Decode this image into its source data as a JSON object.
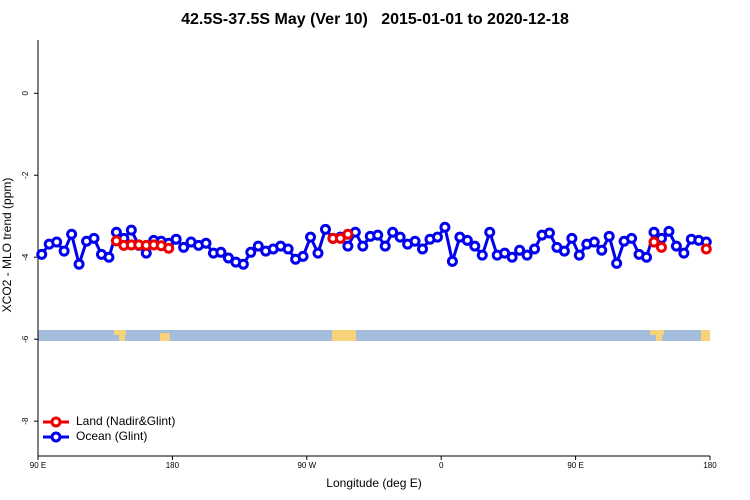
{
  "chart_data": {
    "type": "line",
    "title": "42.5S-37.5S May (Ver 10)   2015-01-01 to 2020-12-18",
    "x_label": "Longitude (deg E)",
    "y_label": "XCO2 - MLO trend (ppm)",
    "xlim": [
      90,
      540
    ],
    "ylim": [
      -8.85,
      1.3
    ],
    "xticks": [
      {
        "value": 90,
        "label": "90 E"
      },
      180,
      {
        "value": 270,
        "label": "90 W"
      },
      {
        "value": 360,
        "label": "0"
      },
      {
        "value": 450,
        "label": "90 E"
      },
      {
        "value": 540,
        "label": "180"
      }
    ],
    "yticks": [
      0,
      -2,
      -4,
      -6,
      -8
    ],
    "legend": "bottom-left",
    "x": [
      92.5,
      97.5,
      102.5,
      107.5,
      112.5,
      117.5,
      122.5,
      127.5,
      132.5,
      137.5,
      142.5,
      147.5,
      152.5,
      157.5,
      162.5,
      167.5,
      172.5,
      177.5,
      182.5,
      187.5,
      192.5,
      197.5,
      202.5,
      207.5,
      212.5,
      217.5,
      222.5,
      227.5,
      232.5,
      237.5,
      242.5,
      247.5,
      252.5,
      257.5,
      262.5,
      267.5,
      272.5,
      277.5,
      282.5,
      287.5,
      292.5,
      297.5,
      302.5,
      307.5,
      312.5,
      317.5,
      322.5,
      327.5,
      332.5,
      337.5,
      342.5,
      347.5,
      352.5,
      357.5,
      362.5,
      367.5,
      372.5,
      377.5,
      382.5,
      387.5,
      392.5,
      397.5,
      402.5,
      407.5,
      412.5,
      417.5,
      422.5,
      427.5,
      432.5,
      437.5,
      442.5,
      447.5,
      452.5,
      457.5,
      462.5,
      467.5,
      472.5,
      477.5,
      482.5,
      487.5,
      492.5,
      497.5,
      502.5,
      507.5,
      512.5,
      517.5,
      522.5,
      527.5,
      532.5,
      537.5
    ],
    "series": [
      {
        "name": "Ocean (Glint)",
        "color": "#0000ee",
        "values": [
          -3.93,
          -3.68,
          -3.63,
          -3.85,
          -3.44,
          -4.17,
          -3.61,
          -3.54,
          -3.93,
          -4.0,
          -3.39,
          -3.54,
          -3.34,
          -3.71,
          -3.9,
          -3.59,
          -3.61,
          -3.66,
          -3.56,
          -3.76,
          -3.63,
          -3.71,
          -3.66,
          -3.9,
          -3.88,
          -4.02,
          -4.12,
          -4.17,
          -3.88,
          -3.73,
          -3.85,
          -3.8,
          -3.73,
          -3.8,
          -4.05,
          -3.98,
          -3.51,
          -3.9,
          -3.32,
          -3.54,
          -3.51,
          -3.73,
          -3.39,
          -3.73,
          -3.49,
          -3.46,
          -3.73,
          -3.39,
          -3.51,
          -3.68,
          -3.61,
          -3.8,
          -3.56,
          -3.51,
          -3.27,
          -4.1,
          -3.51,
          -3.59,
          -3.73,
          -3.95,
          -3.39,
          -3.95,
          -3.9,
          -4.0,
          -3.83,
          -3.95,
          -3.8,
          -3.46,
          -3.41,
          -3.76,
          -3.85,
          -3.54,
          -3.95,
          -3.68,
          -3.63,
          -3.83,
          -3.49,
          -4.15,
          -3.61,
          -3.54,
          -3.93,
          -4.0,
          -3.39,
          -3.54,
          -3.37,
          -3.73,
          -3.9,
          -3.56,
          -3.59,
          -3.63
        ]
      },
      {
        "name": "Land (Nadir&Glint)",
        "color": "#ee0000",
        "values": [
          null,
          null,
          null,
          null,
          null,
          null,
          null,
          null,
          null,
          null,
          -3.6,
          -3.71,
          -3.7,
          -3.7,
          -3.71,
          -3.7,
          -3.72,
          -3.78,
          null,
          null,
          null,
          null,
          null,
          null,
          null,
          null,
          null,
          null,
          null,
          null,
          null,
          null,
          null,
          null,
          null,
          null,
          null,
          null,
          null,
          -3.54,
          -3.54,
          -3.44,
          null,
          null,
          null,
          null,
          null,
          null,
          null,
          null,
          null,
          null,
          null,
          null,
          null,
          null,
          null,
          null,
          null,
          null,
          null,
          null,
          null,
          null,
          null,
          null,
          null,
          null,
          null,
          null,
          null,
          null,
          null,
          null,
          null,
          null,
          null,
          null,
          null,
          null,
          null,
          null,
          -3.63,
          -3.76,
          null,
          null,
          null,
          null,
          null,
          -3.8
        ]
      }
    ]
  }
}
